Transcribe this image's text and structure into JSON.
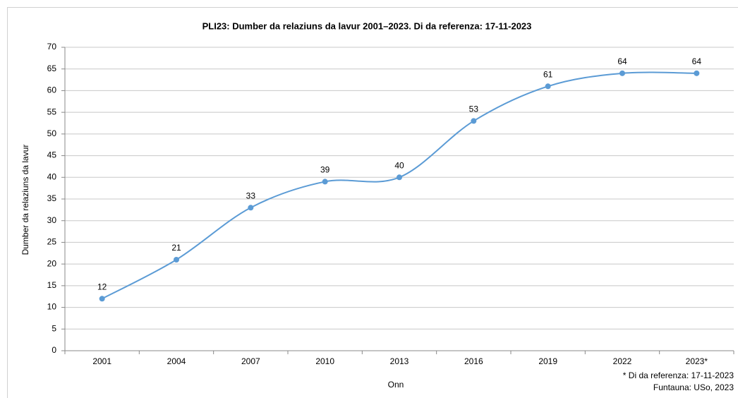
{
  "chart_data": {
    "type": "line",
    "title": "PLI23: Dumber da relaziuns da lavur 2001–2023. Di da referenza: 17-11-2023",
    "x_label": "Onn",
    "y_label": "Dumber da relaziuns da lavur",
    "categories": [
      "2001",
      "2004",
      "2007",
      "2010",
      "2013",
      "2016",
      "2019",
      "2022",
      "2023*"
    ],
    "values": [
      12,
      21,
      33,
      39,
      40,
      53,
      61,
      64,
      64
    ],
    "color": "#5b9bd5",
    "ylim": [
      0,
      70
    ],
    "yticks": [
      0,
      5,
      10,
      15,
      20,
      25,
      30,
      35,
      40,
      45,
      50,
      55,
      60,
      65,
      70
    ],
    "grid": true,
    "smooth": true,
    "notes": [
      "* Di da referenza: 17-11-2023",
      "Funtauna: USo, 2023"
    ]
  }
}
